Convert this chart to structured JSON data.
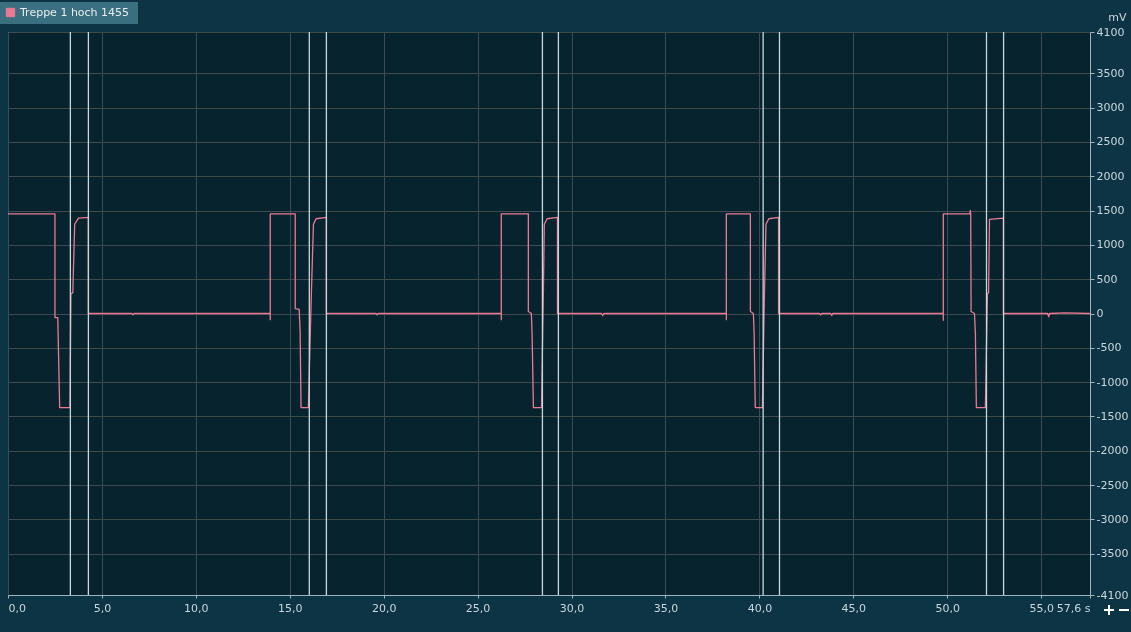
{
  "chart_data": {
    "type": "line",
    "ylabel": "mV",
    "legend": "top left",
    "grid": true,
    "line_style": "solid",
    "marker": "none",
    "xlim": [
      0,
      57.6
    ],
    "xticks": [
      {
        "value": 0,
        "label": "0,0"
      },
      {
        "value": 5,
        "label": "5,0"
      },
      {
        "value": 10,
        "label": "10,0"
      },
      {
        "value": 15,
        "label": "15,0"
      },
      {
        "value": 20,
        "label": "20,0"
      },
      {
        "value": 25,
        "label": "25,0"
      },
      {
        "value": 30,
        "label": "30,0"
      },
      {
        "value": 35,
        "label": "35,0"
      },
      {
        "value": 40,
        "label": "40,0"
      },
      {
        "value": 45,
        "label": "45,0"
      },
      {
        "value": 50,
        "label": "50,0"
      },
      {
        "value": 55,
        "label": "55,0"
      },
      {
        "value": 57.6,
        "label": "57,6 s"
      }
    ],
    "ylim": [
      -4100,
      4100
    ],
    "yticks": [
      4100,
      3500,
      3000,
      2500,
      2000,
      1500,
      1000,
      500,
      0,
      -500,
      -1000,
      -1500,
      -2000,
      -2500,
      -3000,
      -3500,
      -4100
    ],
    "ref_lines": [
      {
        "axis": "x",
        "value": 3.32,
        "color": "#c9d6dc"
      },
      {
        "axis": "x",
        "value": 4.28,
        "color": "#c9d6dc"
      },
      {
        "axis": "x",
        "value": 16.04,
        "color": "#c9d6dc"
      },
      {
        "axis": "x",
        "value": 16.95,
        "color": "#c9d6dc"
      },
      {
        "axis": "x",
        "value": 28.45,
        "color": "#c9d6dc"
      },
      {
        "axis": "x",
        "value": 29.3,
        "color": "#c9d6dc"
      },
      {
        "axis": "x",
        "value": 40.2,
        "color": "#c9d6dc"
      },
      {
        "axis": "x",
        "value": 41.07,
        "color": "#c9d6dc"
      },
      {
        "axis": "x",
        "value": 52.09,
        "color": "#c9d6dc"
      },
      {
        "axis": "x",
        "value": 53.0,
        "color": "#c9d6dc"
      }
    ],
    "series": [
      {
        "name": "Treppe 1 hoch  1455",
        "color": "#ea7a93",
        "x": [
          0,
          2.5,
          2.5,
          2.65,
          2.75,
          3.3,
          3.35,
          3.45,
          3.55,
          3.75,
          4.28,
          4.28,
          6.6,
          6.65,
          6.7,
          13.96,
          13.96,
          13.96,
          15.29,
          15.29,
          15.5,
          15.55,
          15.6,
          15.99,
          16.15,
          16.26,
          16.4,
          16.95,
          16.95,
          19.6,
          19.65,
          19.7,
          26.26,
          26.26,
          26.26,
          27.7,
          27.7,
          27.86,
          27.9,
          27.97,
          28.4,
          28.5,
          28.55,
          28.7,
          29.25,
          29.25,
          31.6,
          31.66,
          31.72,
          38.24,
          38.24,
          38.24,
          39.52,
          39.52,
          39.68,
          39.72,
          39.78,
          40.16,
          40.27,
          40.35,
          40.5,
          41.02,
          41.02,
          43.2,
          43.26,
          43.32,
          43.8,
          43.85,
          43.9,
          49.79,
          49.79,
          49.79,
          51.2,
          51.23,
          51.25,
          51.27,
          51.45,
          51.5,
          51.55,
          52.03,
          52.14,
          52.2,
          52.25,
          52.99,
          52.99,
          55.35,
          55.4,
          55.45,
          56.3,
          57.6
        ],
        "values": [
          1450,
          1450,
          -60,
          -60,
          -1370,
          -1370,
          290,
          300,
          1300,
          1390,
          1400,
          0,
          0,
          -20,
          0,
          0,
          -90,
          1450,
          1450,
          70,
          60,
          -250,
          -1370,
          -1370,
          290,
          1300,
          1380,
          1400,
          0,
          0,
          -20,
          0,
          0,
          -90,
          1450,
          1450,
          30,
          0,
          -300,
          -1370,
          -1370,
          290,
          1300,
          1380,
          1400,
          0,
          0,
          -30,
          0,
          0,
          -90,
          1450,
          1450,
          30,
          0,
          -300,
          -1370,
          -1370,
          290,
          1300,
          1380,
          1400,
          0,
          0,
          -20,
          0,
          0,
          -30,
          0,
          0,
          -100,
          1450,
          1450,
          1500,
          1450,
          30,
          0,
          -300,
          -1370,
          -1370,
          290,
          300,
          1370,
          1390,
          0,
          0,
          -50,
          0,
          10,
          0
        ]
      }
    ]
  }
}
